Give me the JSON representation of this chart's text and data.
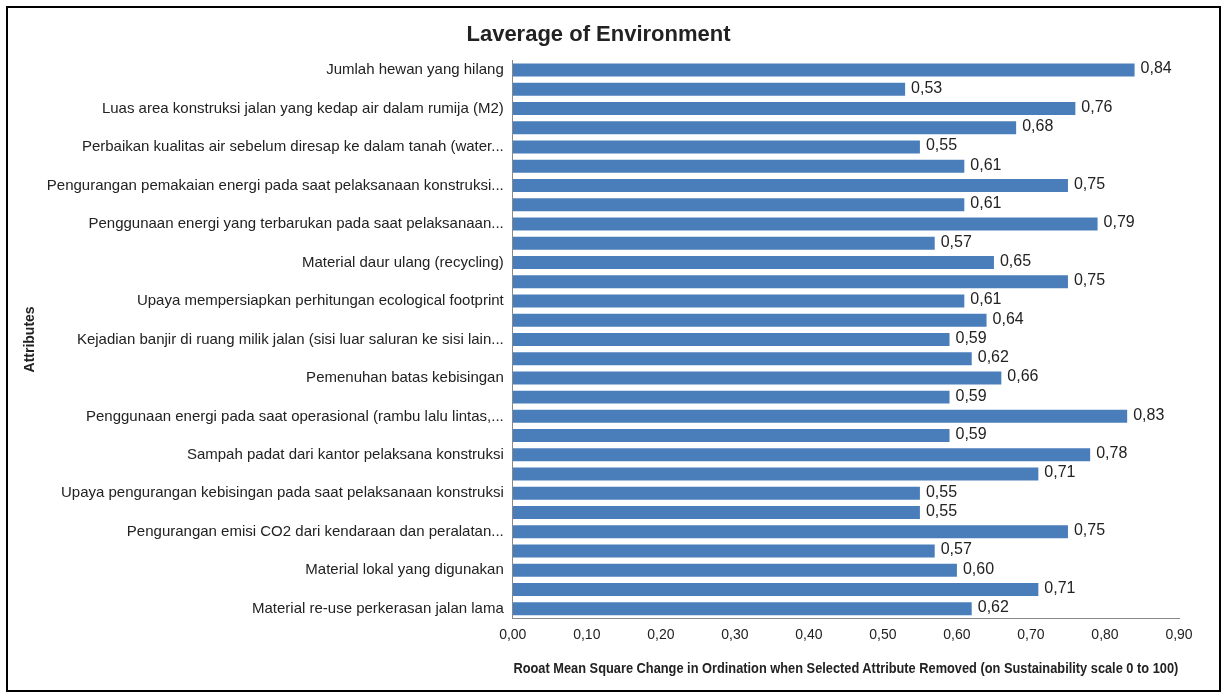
{
  "chart_data": {
    "type": "bar",
    "orientation": "horizontal",
    "title": "Laverage of Environment",
    "xlabel": "Rooat Mean Square Change in Ordination when Selected Attribute Removed (on Sustainability scale 0 to 100)",
    "ylabel": "Attributes",
    "categories": [
      "Jumlah hewan yang hilang",
      null,
      "Luas area konstruksi jalan yang kedap air dalam rumija (M2)",
      null,
      "Perbaikan kualitas air sebelum diresap ke dalam tanah (water...",
      null,
      "Pengurangan pemakaian energi pada saat pelaksanaan konstruksi...",
      null,
      "Penggunaan energi yang terbarukan pada saat pelaksanaan...",
      null,
      "Material daur ulang (recycling)",
      null,
      "Upaya mempersiapkan perhitungan ecological footprint",
      null,
      "Kejadian banjir di ruang milik jalan (sisi luar saluran ke sisi lain...",
      null,
      "Pemenuhan batas kebisingan",
      null,
      "Penggunaan energi pada saat operasional (rambu lalu lintas,...",
      null,
      "Sampah padat dari kantor pelaksana konstruksi",
      null,
      "Upaya pengurangan kebisingan pada saat pelaksanaan konstruksi",
      null,
      "Pengurangan emisi CO2 dari kendaraan dan peralatan...",
      null,
      "Material lokal yang digunakan",
      null,
      "Material re-use perkerasan jalan lama"
    ],
    "values": [
      0.84,
      0.53,
      0.76,
      0.68,
      0.55,
      0.61,
      0.75,
      0.61,
      0.79,
      0.57,
      0.65,
      0.75,
      0.61,
      0.64,
      0.59,
      0.62,
      0.66,
      0.59,
      0.83,
      0.59,
      0.78,
      0.71,
      0.55,
      0.55,
      0.75,
      0.57,
      0.6,
      0.71,
      0.62
    ],
    "value_labels": [
      "0,84",
      "0,53",
      "0,76",
      "0,68",
      "0,55",
      "0,61",
      "0,75",
      "0,61",
      "0,79",
      "0,57",
      "0,65",
      "0,75",
      "0,61",
      "0,64",
      "0,59",
      "0,62",
      "0,66",
      "0,59",
      "0,83",
      "0,59",
      "0,78",
      "0,71",
      "0,55",
      "0,55",
      "0,75",
      "0,57",
      "0,60",
      "0,71",
      "0,62"
    ],
    "color": "#4a7ebb",
    "xlim": [
      0,
      0.9
    ],
    "xticks": [
      {
        "value": 0,
        "label": "0,00"
      },
      {
        "value": 0.1,
        "label": "0,10"
      },
      {
        "value": 0.2,
        "label": "0,20"
      },
      {
        "value": 0.3,
        "label": "0,30"
      },
      {
        "value": 0.4,
        "label": "0,40"
      },
      {
        "value": 0.5,
        "label": "0,50"
      },
      {
        "value": 0.6,
        "label": "0,60"
      },
      {
        "value": 0.7,
        "label": "0,70"
      },
      {
        "value": 0.8,
        "label": "0,80"
      },
      {
        "value": 0.9,
        "label": "0,90"
      }
    ],
    "grid": false,
    "legend": false
  }
}
